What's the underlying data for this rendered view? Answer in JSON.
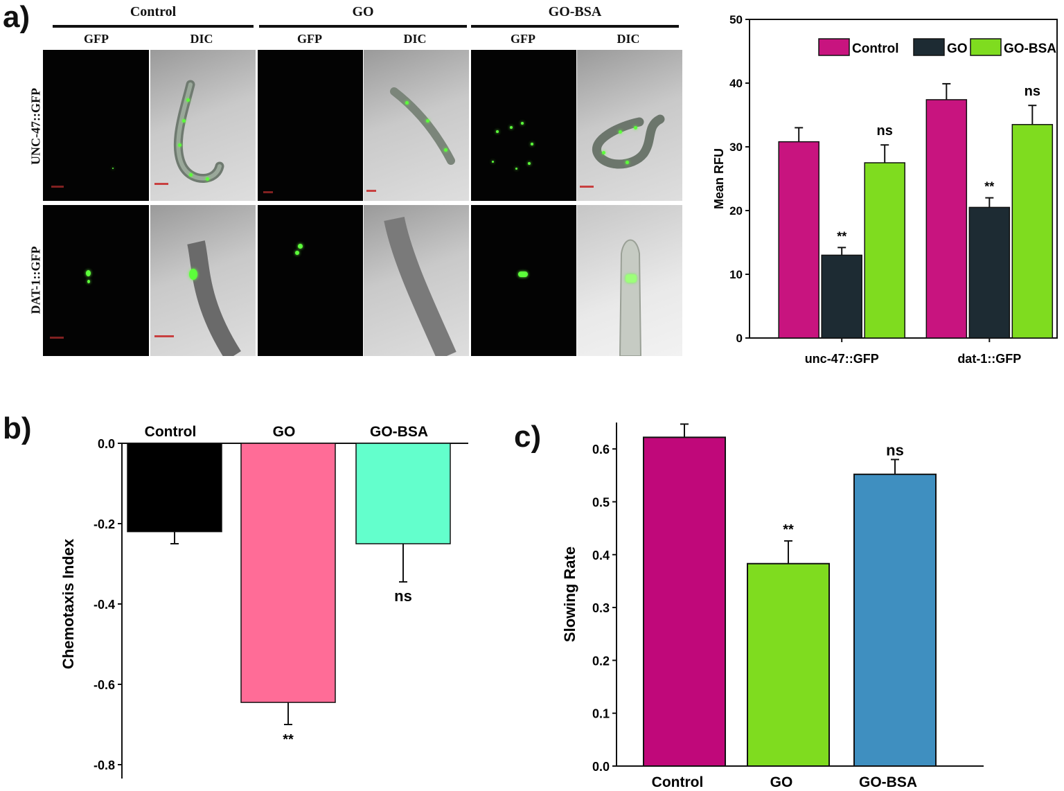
{
  "panels": {
    "a": "a)",
    "b": "b)",
    "c": "c)"
  },
  "micrographs": {
    "groups": [
      "Control",
      "GO",
      "GO-BSA"
    ],
    "channels": [
      "GFP",
      "DIC"
    ],
    "rows": [
      "UNC-47::GFP",
      "DAT-1::GFP"
    ]
  },
  "chart_data": [
    {
      "panel": "a",
      "type": "bar",
      "categories": [
        "unc-47::GFP",
        "dat-1::GFP"
      ],
      "series": [
        {
          "name": "Control",
          "color": "#c8147f",
          "values": [
            30.8,
            37.4
          ],
          "errors": [
            2.2,
            2.5
          ],
          "annotations": [
            "",
            ""
          ]
        },
        {
          "name": "GO",
          "color": "#1d2b33",
          "values": [
            13.0,
            20.5
          ],
          "errors": [
            1.2,
            1.5
          ],
          "annotations": [
            "**",
            "**"
          ]
        },
        {
          "name": "GO-BSA",
          "color": "#7fdc1f",
          "values": [
            27.5,
            33.5
          ],
          "errors": [
            2.8,
            3.0
          ],
          "annotations": [
            "ns",
            "ns"
          ]
        }
      ],
      "ylabel": "Mean RFU",
      "ylim": [
        0,
        50
      ],
      "yticks": [
        0,
        10,
        20,
        30,
        40,
        50
      ],
      "legend": "top-right",
      "grid": false
    },
    {
      "panel": "b",
      "type": "bar",
      "categories": [
        "Control",
        "GO",
        "GO-BSA"
      ],
      "values": [
        -0.22,
        -0.645,
        -0.25
      ],
      "errors": [
        0.03,
        0.055,
        0.095
      ],
      "colors": [
        "#000000",
        "#ff6c97",
        "#63ffcc"
      ],
      "annotations": [
        "",
        "**",
        "ns"
      ],
      "ylabel": "Chemotaxis Index",
      "ylim": [
        -0.8,
        0.0
      ],
      "yticks": [
        0.0,
        -0.2,
        -0.4,
        -0.6,
        -0.8
      ],
      "ytick_labels": [
        "0.0",
        "-0.2",
        "-0.4",
        "-0.6",
        "-0.8"
      ],
      "category_axis": "top",
      "grid": false
    },
    {
      "panel": "c",
      "type": "bar",
      "categories": [
        "Control",
        "GO",
        "GO-BSA"
      ],
      "values": [
        0.622,
        0.383,
        0.552
      ],
      "errors": [
        0.025,
        0.043,
        0.028
      ],
      "colors": [
        "#c0087a",
        "#7fdc1f",
        "#3f8fc0"
      ],
      "annotations": [
        "",
        "**",
        "ns"
      ],
      "ylabel": "Slowing Rate",
      "ylim": [
        0.0,
        0.65
      ],
      "yticks": [
        0.0,
        0.1,
        0.2,
        0.3,
        0.4,
        0.5,
        0.6
      ],
      "ytick_labels": [
        "0.0",
        "0.1",
        "0.2",
        "0.3",
        "0.4",
        "0.5",
        "0.6"
      ],
      "category_axis": "bottom",
      "grid": false
    }
  ]
}
